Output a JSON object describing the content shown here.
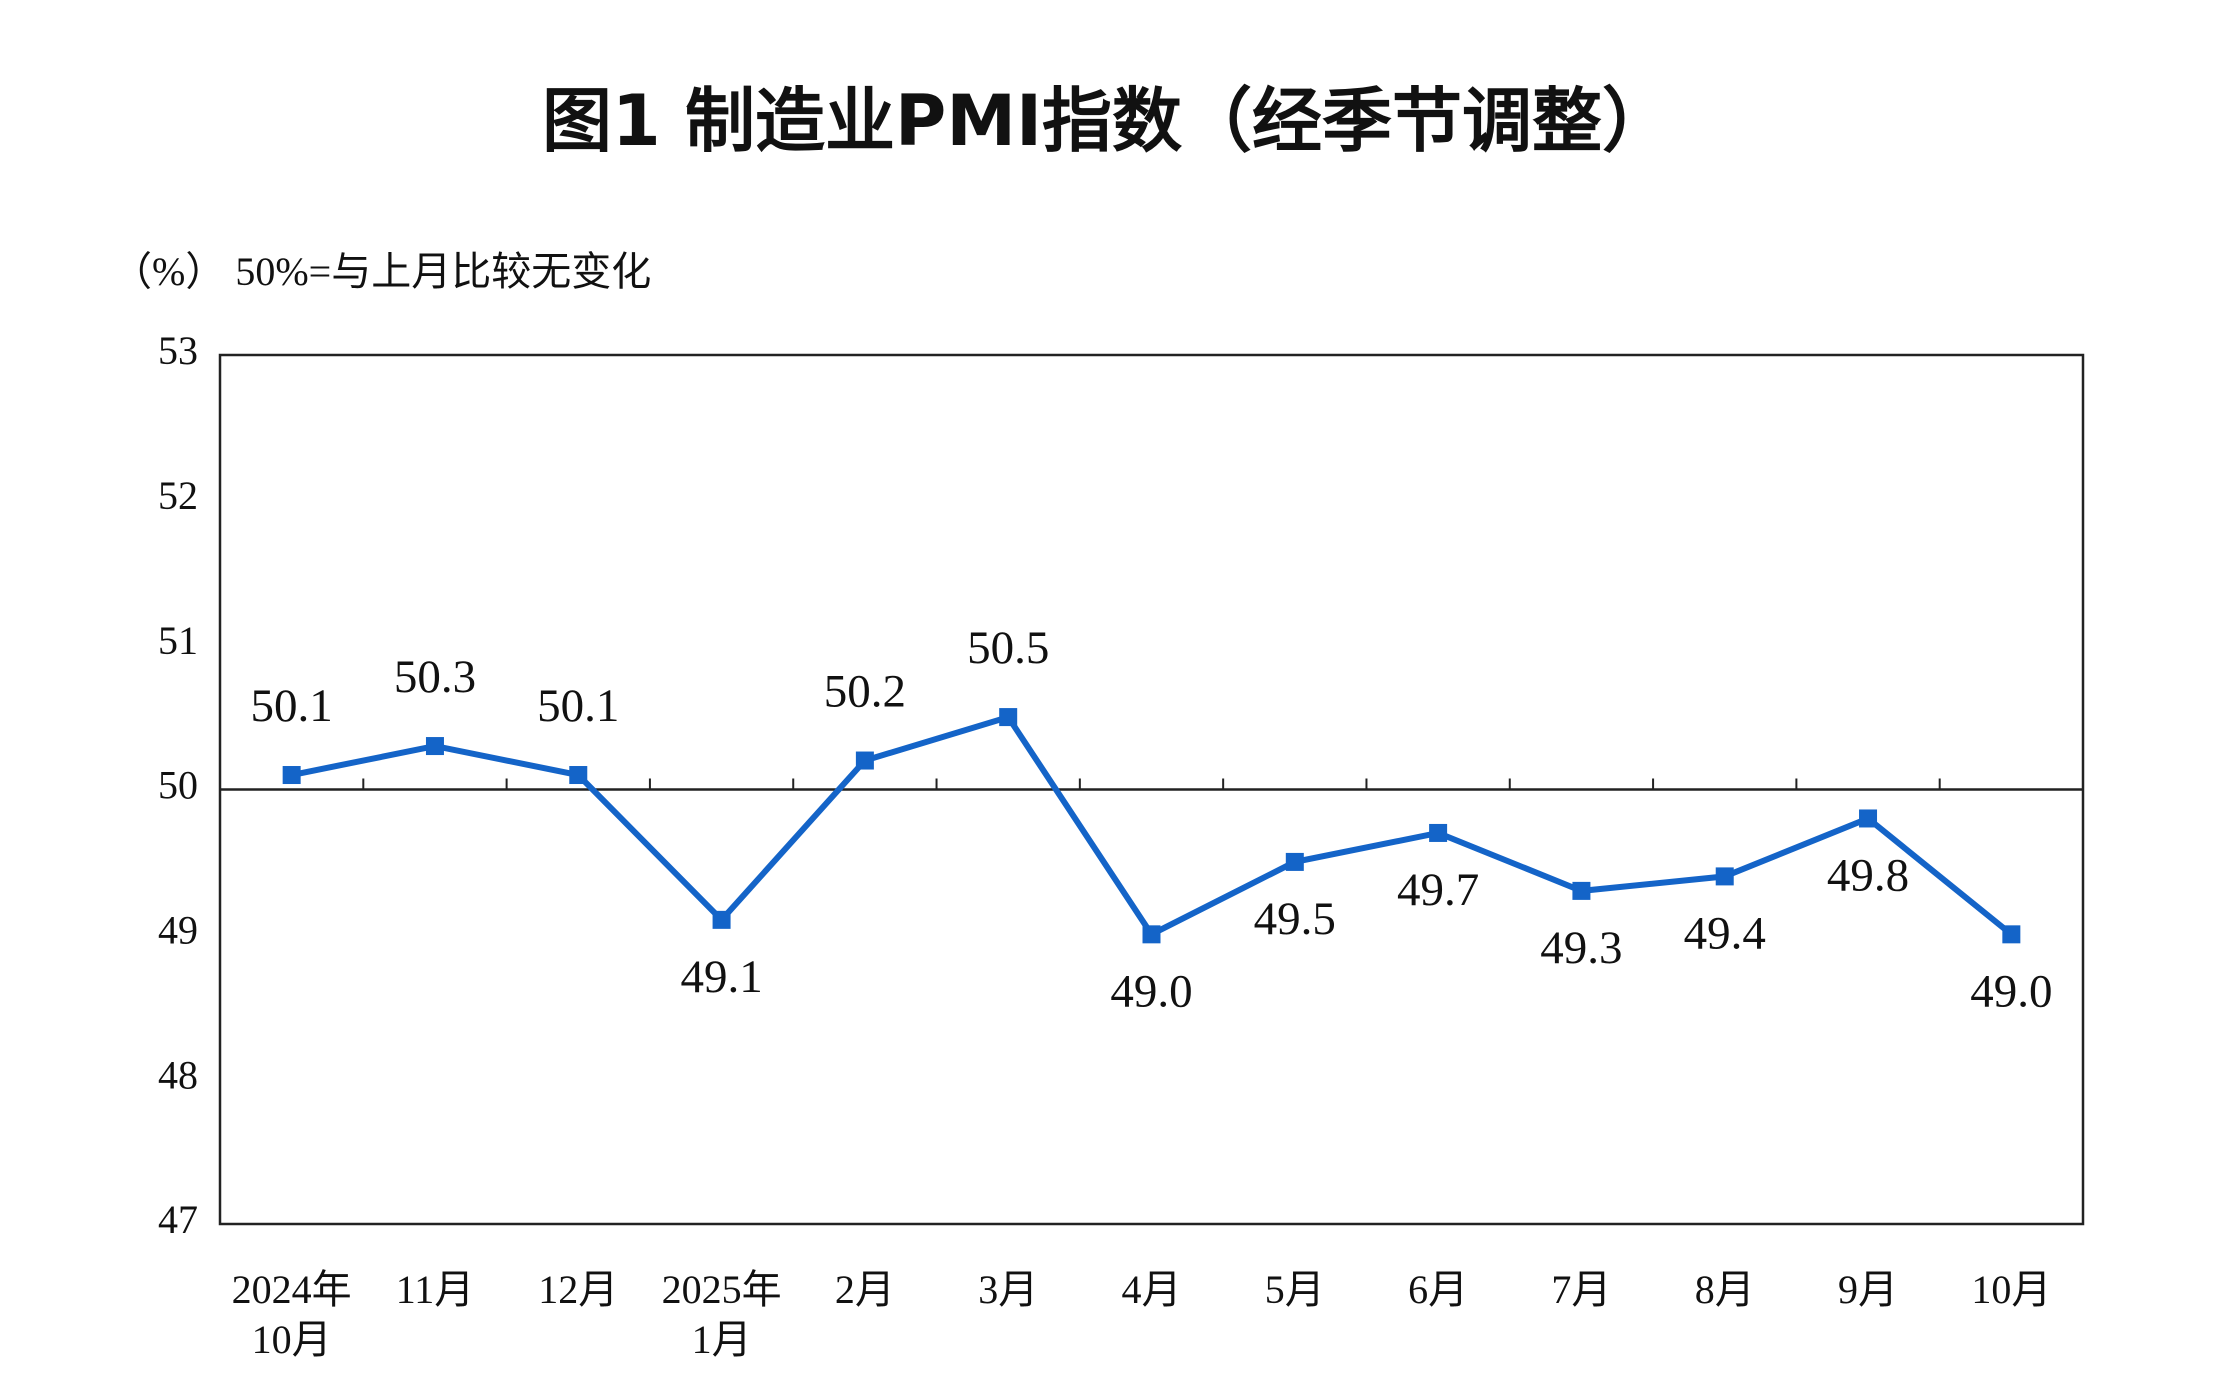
{
  "chart_data": {
    "type": "line",
    "title": "图1  制造业PMI指数（经季节调整）",
    "subtitle": "（%）  50%=与上月比较无变化",
    "categories": [
      [
        "2024年",
        "10月"
      ],
      [
        "11月"
      ],
      [
        "12月"
      ],
      [
        "2025年",
        "1月"
      ],
      [
        "2月"
      ],
      [
        "3月"
      ],
      [
        "4月"
      ],
      [
        "5月"
      ],
      [
        "6月"
      ],
      [
        "7月"
      ],
      [
        "8月"
      ],
      [
        "9月"
      ],
      [
        "10月"
      ]
    ],
    "series": [
      {
        "name": "制造业PMI",
        "color": "#1464c8",
        "values": [
          50.1,
          50.3,
          50.1,
          49.1,
          50.2,
          50.5,
          49.0,
          49.5,
          49.7,
          49.3,
          49.4,
          49.8,
          49.0
        ],
        "value_labels": [
          "50.1",
          "50.3",
          "50.1",
          "49.1",
          "50.2",
          "50.5",
          "49.0",
          "49.5",
          "49.7",
          "49.3",
          "49.4",
          "49.8",
          "49.0"
        ]
      }
    ],
    "ylim": [
      47,
      53
    ],
    "yticks": [
      47,
      48,
      49,
      50,
      51,
      52,
      53
    ],
    "reference_line": 50,
    "grid": false,
    "legend": false
  }
}
